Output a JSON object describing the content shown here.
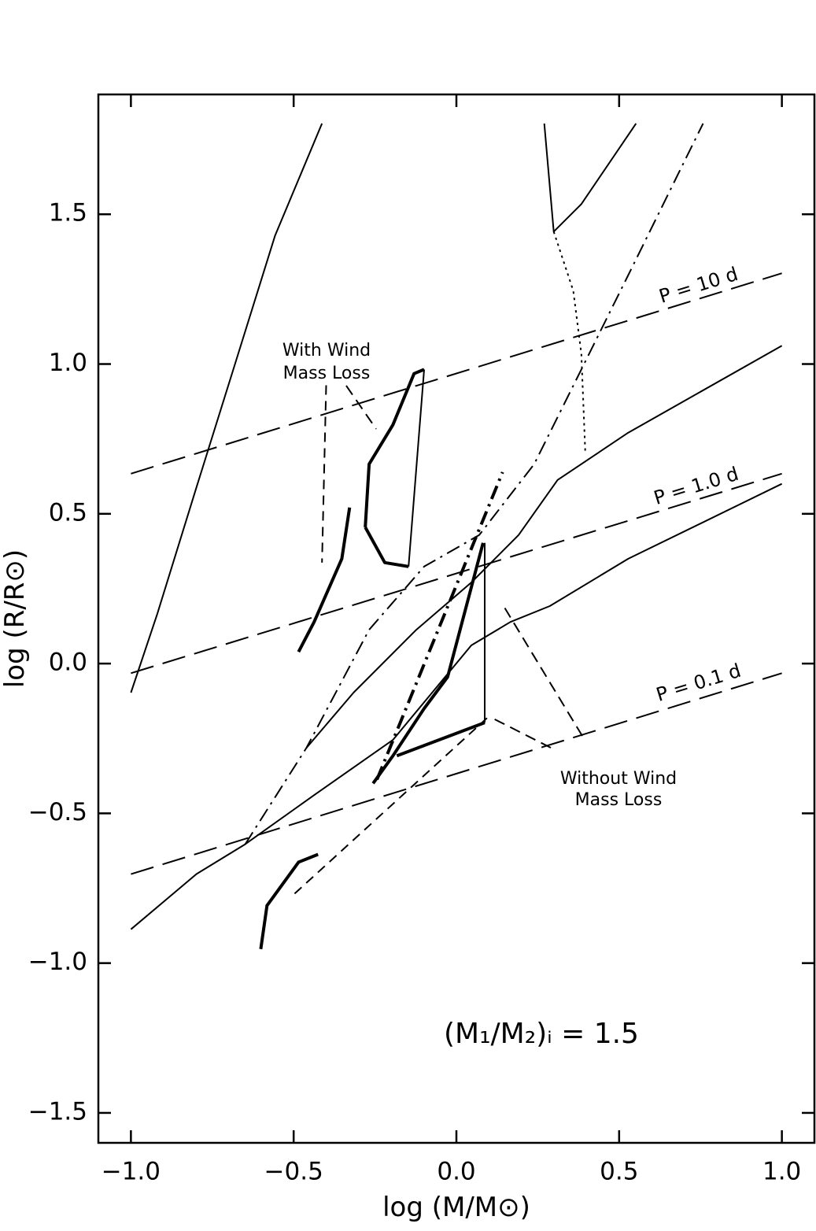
{
  "chart_data": {
    "type": "line",
    "xlabel": "log (M/M⊙)",
    "ylabel": "log (R/R⊙)",
    "annotations": [
      "P = 10 d",
      "P = 1.0 d",
      "P = 0.1 d",
      "With Wind",
      "Mass Loss",
      "Without Wind",
      "Mass Loss",
      "(M₁/M₂)ᵢ = 1.5"
    ],
    "xlim": [
      -1.1,
      1.1
    ],
    "ylim": [
      -1.6,
      1.9
    ],
    "xticks": [
      {
        "value": -1,
        "label": "−1.0"
      },
      {
        "value": -0.5,
        "label": "−0.5"
      },
      {
        "value": 0,
        "label": "0.0"
      },
      0.5,
      {
        "value": 1,
        "label": "1.0"
      }
    ],
    "yticks": [
      {
        "value": -1.5,
        "label": "−1.5"
      },
      {
        "value": -1,
        "label": "−1.0"
      },
      {
        "value": -0.5,
        "label": "−0.5"
      },
      {
        "value": 0,
        "label": "0.0"
      },
      0.5,
      {
        "value": 1,
        "label": "1.0"
      },
      1.5
    ],
    "color": "#000000",
    "series": [
      {
        "dash": "solid",
        "width": 2,
        "x": [
          -1.0,
          -0.919,
          -0.799,
          -0.678,
          -0.557,
          -0.413
        ],
        "values": [
          -0.097,
          0.166,
          0.587,
          1.008,
          1.429,
          1.803
        ]
      },
      {
        "dash": "longdash",
        "width": 2,
        "x": [
          -1.0,
          1.0
        ],
        "values": [
          0.634,
          1.303
        ]
      },
      {
        "dash": "longdash",
        "width": 2,
        "x": [
          -1.0,
          1.0
        ],
        "values": [
          -0.032,
          0.634
        ]
      },
      {
        "dash": "longdash",
        "width": 2,
        "x": [
          -1.0,
          1.0
        ],
        "values": [
          -0.703,
          -0.032
        ]
      },
      {
        "dash": "solid",
        "width": 2,
        "x": [
          0.27,
          0.299,
          0.384,
          0.552
        ],
        "values": [
          1.803,
          1.442,
          1.534,
          1.803
        ]
      },
      {
        "dash": "dot",
        "width": 2,
        "x": [
          0.299,
          0.359,
          0.384,
          0.396
        ],
        "values": [
          1.442,
          1.245,
          1.034,
          0.705
        ]
      },
      {
        "dash": "dashdot",
        "width": 2,
        "x": [
          -0.649,
          -0.461,
          -0.268,
          -0.099,
          0.07,
          0.239,
          0.384,
          0.528,
          0.758
        ],
        "values": [
          -0.603,
          -0.282,
          0.113,
          0.324,
          0.429,
          0.666,
          0.982,
          1.297,
          1.803
        ]
      },
      {
        "dash": "solid",
        "width": 2,
        "x": [
          -1.0,
          -0.799,
          -0.649,
          -0.437,
          -0.195,
          0.046,
          0.166,
          0.287,
          0.528,
          1.0
        ],
        "values": [
          -0.887,
          -0.703,
          -0.603,
          -0.439,
          -0.255,
          0.061,
          0.139,
          0.192,
          0.35,
          0.6
        ]
      },
      {
        "dash": "solid",
        "width": 2,
        "x": [
          -0.461,
          -0.316,
          -0.123,
          0.046,
          0.191,
          0.311,
          0.528,
          1.0
        ],
        "values": [
          -0.282,
          -0.097,
          0.113,
          0.271,
          0.429,
          0.613,
          0.771,
          1.061
        ]
      },
      {
        "dash": "solid",
        "width": 4,
        "x": [
          -0.485,
          -0.437,
          -0.352,
          -0.328
        ],
        "values": [
          0.039,
          0.139,
          0.35,
          0.521
        ]
      },
      {
        "dash": "dash",
        "width": 2,
        "x": [
          -0.4,
          -0.413
        ],
        "values": [
          0.929,
          0.337
        ]
      },
      {
        "dash": "solid",
        "width": 4,
        "x": [
          -0.28,
          -0.268,
          -0.195,
          -0.13,
          -0.099
        ],
        "values": [
          0.455,
          0.666,
          0.797,
          0.968,
          0.982
        ]
      },
      {
        "dash": "solid",
        "width": 2,
        "x": [
          -0.099,
          -0.147
        ],
        "values": [
          0.982,
          0.324
        ]
      },
      {
        "dash": "solid",
        "width": 4,
        "x": [
          -0.28,
          -0.22,
          -0.147
        ],
        "values": [
          0.455,
          0.337,
          0.324
        ]
      },
      {
        "dash": "solid",
        "width": 4,
        "x": [
          -0.601,
          -0.582,
          -0.485,
          -0.425
        ],
        "values": [
          -0.953,
          -0.808,
          -0.663,
          -0.637
        ]
      },
      {
        "dash": "dash",
        "width": 2,
        "x": [
          -0.497,
          0.094
        ],
        "values": [
          -0.768,
          -0.182
        ]
      },
      {
        "dash": "solid",
        "width": 4,
        "x": [
          -0.256,
          -0.195,
          -0.099,
          -0.027,
          0.082
        ],
        "values": [
          -0.4,
          -0.308,
          -0.15,
          -0.045,
          0.403
        ]
      },
      {
        "dash": "solid",
        "width": 4,
        "x": [
          -0.183,
          0.087
        ],
        "values": [
          -0.308,
          -0.197
        ]
      },
      {
        "dash": "solid",
        "width": 2,
        "x": [
          0.087,
          0.087
        ],
        "values": [
          -0.197,
          0.403
        ]
      },
      {
        "dash": "dashdot",
        "width": 4,
        "x": [
          -0.244,
          0.142
        ],
        "values": [
          -0.387,
          0.639
        ]
      }
    ]
  }
}
